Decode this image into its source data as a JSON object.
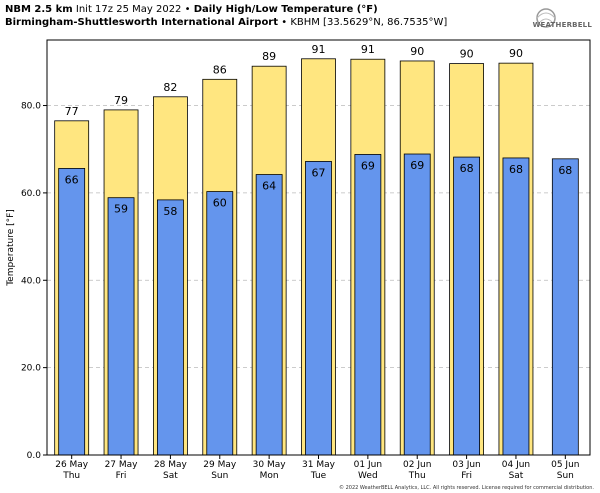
{
  "header": {
    "line1_model": "NBM 2.5 km",
    "line1_init": "Init 17z 25 May 2022",
    "line1_sep": "•",
    "line1_product": "Daily High/Low Temperature (°F)",
    "line2_station": "Birmingham-Shuttlesworth International Airport",
    "line2_sep": "•",
    "line2_location": "KBHM [33.5629°N, 86.7535°W]"
  },
  "logo": {
    "text": "WEATHERBELL",
    "icon": "weatherbell-logo-icon"
  },
  "copyright": "© 2022 WeatherBELL Analytics, LLC. All rights reserved. License required for commercial distribution.",
  "colors": {
    "high": "#FFE680",
    "low": "#6495ED",
    "grid": "#bbbbbb"
  },
  "chart_data": {
    "type": "bar",
    "title": "Daily High/Low Temperature (°F)",
    "ylabel": "Temperature [°F]",
    "ylim": [
      0,
      95
    ],
    "yticks": [
      0,
      20,
      40,
      60,
      80
    ],
    "ytick_labels": [
      "0.0",
      "20.0",
      "40.0",
      "60.0",
      "80.0"
    ],
    "grid": true,
    "categories": [
      {
        "date": "26 May",
        "day": "Thu"
      },
      {
        "date": "27 May",
        "day": "Fri"
      },
      {
        "date": "28 May",
        "day": "Sat"
      },
      {
        "date": "29 May",
        "day": "Sun"
      },
      {
        "date": "30 May",
        "day": "Mon"
      },
      {
        "date": "31 May",
        "day": "Tue"
      },
      {
        "date": "01 Jun",
        "day": "Wed"
      },
      {
        "date": "02 Jun",
        "day": "Thu"
      },
      {
        "date": "03 Jun",
        "day": "Fri"
      },
      {
        "date": "04 Jun",
        "day": "Sat"
      },
      {
        "date": "05 Jun",
        "day": "Sun"
      }
    ],
    "series": [
      {
        "values": [
          77,
          79,
          82,
          86,
          89,
          91,
          91,
          90,
          90,
          90,
          null
        ],
        "plot_values": [
          76.5,
          79,
          82,
          86,
          89,
          90.7,
          90.6,
          90.2,
          89.6,
          89.7,
          null
        ],
        "labels": [
          "77",
          "79",
          "82",
          "86",
          "89",
          "91",
          "91",
          "90",
          "90",
          "90",
          ""
        ]
      },
      {
        "values": [
          66,
          59,
          58,
          60,
          64,
          67,
          69,
          69,
          68,
          68,
          68
        ],
        "plot_values": [
          65.6,
          58.9,
          58.4,
          60.3,
          64.2,
          67.2,
          68.8,
          68.9,
          68.2,
          68.0,
          67.8
        ],
        "labels": [
          "66",
          "59",
          "58",
          "60",
          "64",
          "67",
          "69",
          "69",
          "68",
          "68",
          "68"
        ]
      }
    ]
  }
}
